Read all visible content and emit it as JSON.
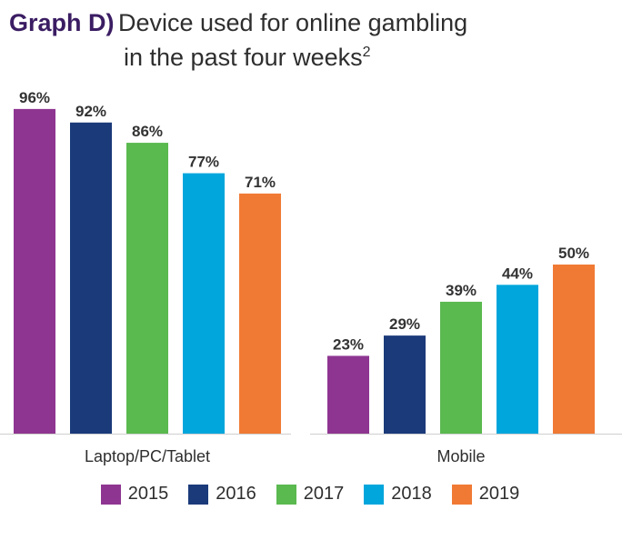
{
  "title": {
    "prefix": "Graph D)",
    "line1": "Device used for online gambling",
    "line2": "in the past four weeks",
    "footnote": "2"
  },
  "chart_data": {
    "type": "bar",
    "categories": [
      "Laptop/PC/Tablet",
      "Mobile"
    ],
    "series": [
      {
        "name": "2015",
        "color": "#8e3591",
        "values": [
          96,
          23
        ],
        "labels": [
          "96%",
          "23%"
        ]
      },
      {
        "name": "2016",
        "color": "#1b3a7a",
        "values": [
          92,
          29
        ],
        "labels": [
          "92%",
          "29%"
        ]
      },
      {
        "name": "2017",
        "color": "#5ab94f",
        "values": [
          86,
          39
        ],
        "labels": [
          "86%",
          "39%"
        ]
      },
      {
        "name": "2018",
        "color": "#00a6dc",
        "values": [
          77,
          44
        ],
        "labels": [
          "77%",
          "44%"
        ]
      },
      {
        "name": "2019",
        "color": "#f07a34",
        "values": [
          71,
          50
        ],
        "labels": [
          "71%",
          "50%"
        ]
      }
    ],
    "ylim": [
      0,
      100
    ],
    "grid": false,
    "legend": "bottom"
  }
}
